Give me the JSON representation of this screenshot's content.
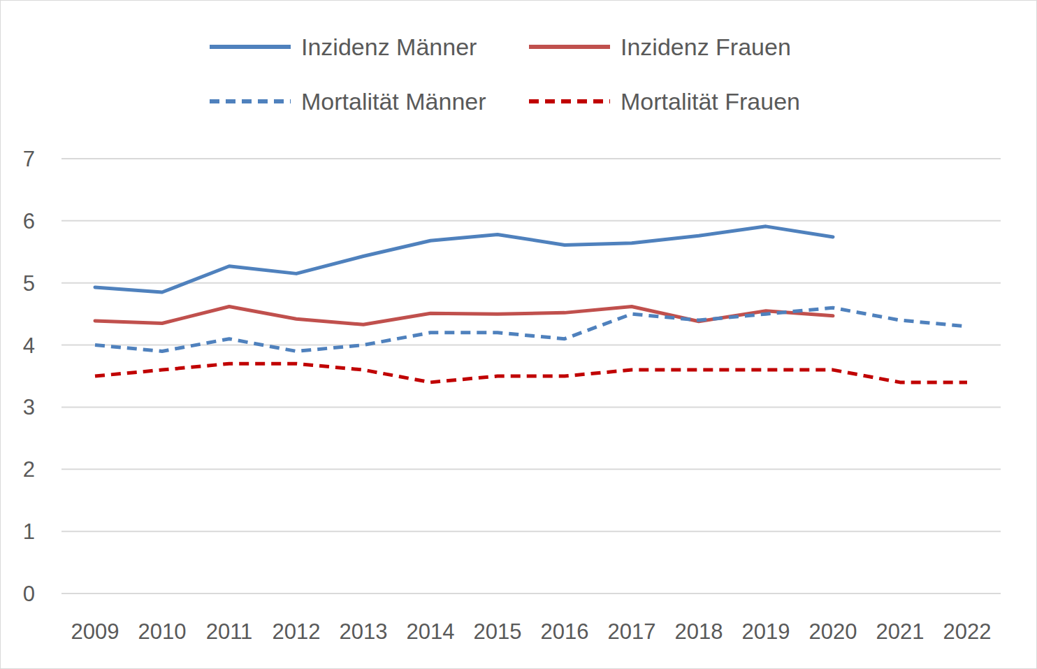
{
  "chart_data": {
    "type": "line",
    "categories": [
      "2009",
      "2010",
      "2011",
      "2012",
      "2013",
      "2014",
      "2015",
      "2016",
      "2017",
      "2018",
      "2019",
      "2020",
      "2021",
      "2022"
    ],
    "series": [
      {
        "name": "Inzidenz Männer",
        "color": "#4f81bd",
        "line_style": "solid",
        "values": [
          4.93,
          4.85,
          5.27,
          5.15,
          5.43,
          5.68,
          5.78,
          5.61,
          5.64,
          5.76,
          5.91,
          5.74,
          null,
          null
        ]
      },
      {
        "name": "Inzidenz Frauen",
        "color": "#c0504d",
        "line_style": "solid",
        "values": [
          4.39,
          4.35,
          4.62,
          4.42,
          4.33,
          4.51,
          4.5,
          4.52,
          4.62,
          4.38,
          4.55,
          4.47,
          null,
          null
        ]
      },
      {
        "name": "Mortalität Männer",
        "color": "#4f81bd",
        "line_style": "dashed",
        "values": [
          4.0,
          3.9,
          4.1,
          3.9,
          4.0,
          4.2,
          4.2,
          4.1,
          4.5,
          4.4,
          4.5,
          4.6,
          4.4,
          4.3
        ]
      },
      {
        "name": "Mortalität Frauen",
        "color": "#c00000",
        "line_style": "dashed",
        "values": [
          3.5,
          3.6,
          3.7,
          3.7,
          3.6,
          3.4,
          3.5,
          3.5,
          3.6,
          3.6,
          3.6,
          3.6,
          3.4,
          3.4
        ]
      }
    ],
    "ylim": [
      0,
      7
    ],
    "yticks": [
      0,
      1,
      2,
      3,
      4,
      5,
      6,
      7
    ],
    "grid": true,
    "legend": "top"
  }
}
